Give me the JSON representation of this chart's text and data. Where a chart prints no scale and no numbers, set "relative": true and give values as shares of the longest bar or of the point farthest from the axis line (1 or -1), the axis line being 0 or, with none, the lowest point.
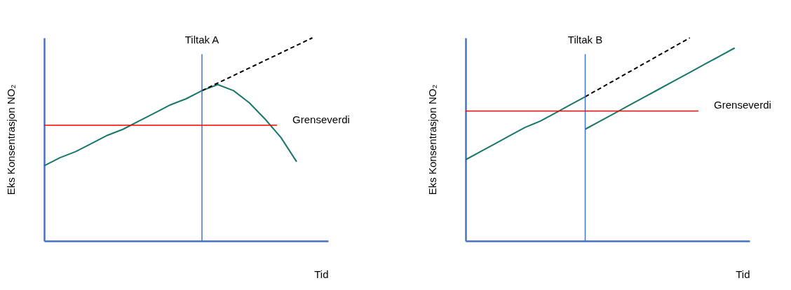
{
  "chart_data": [
    {
      "type": "line",
      "relative": true,
      "xlabel": "Tid",
      "ylabel": "Eks Konsentrasjon NO₂",
      "categories": [
        null,
        null,
        null,
        null,
        null,
        null,
        null,
        null,
        null,
        null,
        null,
        null,
        null,
        null,
        null,
        null,
        null,
        null,
        null
      ],
      "series": [
        {
          "color": "#17776a",
          "values": [
            0.37,
            0.41,
            0.44,
            0.48,
            0.52,
            0.55,
            0.59,
            0.63,
            0.67,
            0.7,
            0.74,
            0.77,
            0.74,
            0.68,
            0.6,
            0.51,
            0.39,
            null,
            null
          ]
        },
        {
          "color": "#000000",
          "line_style": "dashed",
          "values": [
            null,
            null,
            null,
            null,
            null,
            null,
            null,
            null,
            null,
            null,
            0.74,
            null,
            null,
            null,
            null,
            null,
            null,
            1.0,
            null
          ]
        }
      ],
      "ref_lines": [
        {
          "axis": "y",
          "value": 0.57,
          "label": "Grenseverdi",
          "color": "#ff0000"
        }
      ],
      "annotations": [
        "Tiltak A"
      ]
    },
    {
      "type": "line",
      "relative": true,
      "xlabel": "Tid",
      "ylabel": "Eks Konsentrasjon NO₂",
      "categories": [
        null,
        null,
        null,
        null,
        null,
        null,
        null,
        null,
        null,
        null,
        null,
        null,
        null,
        null,
        null,
        null,
        null,
        null,
        null,
        null
      ],
      "series": [
        {
          "color": "#17776a",
          "values": [
            0.4,
            0.44,
            0.48,
            0.52,
            0.56,
            0.59,
            0.63,
            0.67,
            0.71,
            null,
            null,
            null,
            null,
            null,
            null,
            null,
            null,
            null,
            null,
            null
          ]
        },
        {
          "color": "#000000",
          "line_style": "dashed",
          "values": [
            null,
            null,
            null,
            null,
            null,
            null,
            null,
            null,
            0.71,
            null,
            null,
            null,
            null,
            null,
            null,
            1.0,
            null,
            null,
            null,
            null
          ]
        },
        {
          "color": "#17776a",
          "values": [
            null,
            null,
            null,
            null,
            null,
            null,
            null,
            null,
            0.55,
            0.59,
            0.63,
            0.67,
            0.71,
            0.75,
            0.79,
            0.83,
            0.87,
            0.91,
            0.95,
            null
          ]
        }
      ],
      "ref_lines": [
        {
          "axis": "y",
          "value": 0.64,
          "label": "Grenseverdi",
          "color": "#ff0000"
        }
      ],
      "annotations": [
        "Tiltak B"
      ]
    }
  ]
}
